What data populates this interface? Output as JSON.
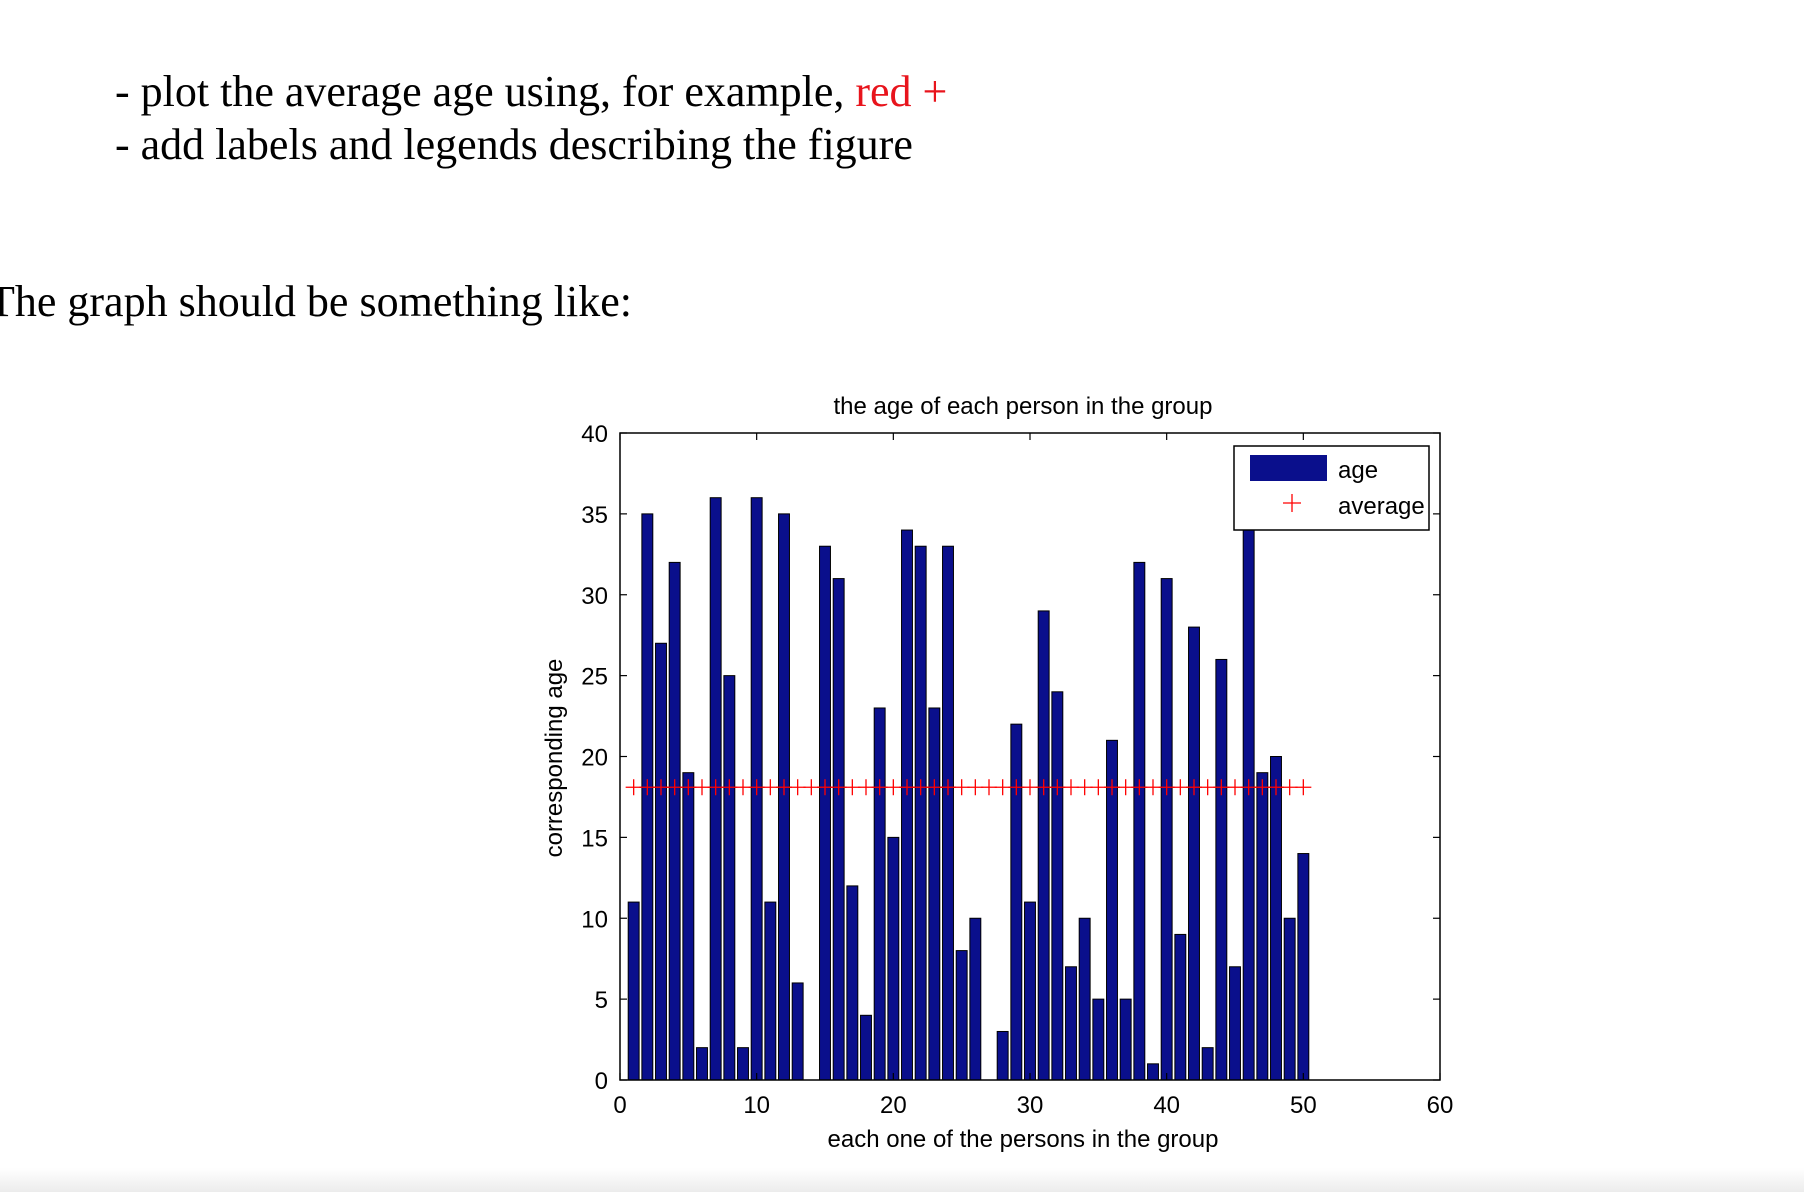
{
  "document": {
    "bullets": [
      {
        "prefix": "- plot the average age using, for example, ",
        "highlight": "red +"
      },
      {
        "prefix": "- add labels and legends describing the figure",
        "highlight": ""
      }
    ],
    "intro": "The graph should be something like:"
  },
  "colors": {
    "bar": "#0a0f8c",
    "average": "#ff0000",
    "highlight_text": "#e8141c"
  },
  "chart_data": {
    "type": "bar",
    "title": "the age of each person in the group",
    "xlabel": "each one of the persons in the group",
    "ylabel": "corresponding age",
    "xlim": [
      0,
      60
    ],
    "ylim": [
      0,
      40
    ],
    "xticks": [
      0,
      10,
      20,
      30,
      40,
      50,
      60
    ],
    "yticks": [
      0,
      5,
      10,
      15,
      20,
      25,
      30,
      35,
      40
    ],
    "grid": false,
    "legend_position": "top-right",
    "series": [
      {
        "name": "age",
        "type": "bar",
        "x": [
          1,
          2,
          3,
          4,
          5,
          6,
          7,
          8,
          9,
          10,
          11,
          12,
          13,
          14,
          15,
          16,
          17,
          18,
          19,
          20,
          21,
          22,
          23,
          24,
          25,
          26,
          27,
          28,
          29,
          30,
          31,
          32,
          33,
          34,
          35,
          36,
          37,
          38,
          39,
          40,
          41,
          42,
          43,
          44,
          45,
          46,
          47,
          48,
          49,
          50
        ],
        "values": [
          11,
          35,
          27,
          32,
          19,
          2,
          36,
          25,
          2,
          36,
          11,
          35,
          6,
          0,
          33,
          31,
          12,
          4,
          23,
          15,
          34,
          33,
          23,
          33,
          8,
          10,
          0,
          3,
          22,
          11,
          29,
          24,
          7,
          10,
          5,
          21,
          5,
          32,
          1,
          31,
          9,
          28,
          2,
          26,
          7,
          38,
          19,
          20,
          10,
          14
        ]
      },
      {
        "name": "average",
        "type": "marker",
        "marker": "+",
        "x": [
          1,
          2,
          3,
          4,
          5,
          6,
          7,
          8,
          9,
          10,
          11,
          12,
          13,
          14,
          15,
          16,
          17,
          18,
          19,
          20,
          21,
          22,
          23,
          24,
          25,
          26,
          27,
          28,
          29,
          30,
          31,
          32,
          33,
          34,
          35,
          36,
          37,
          38,
          39,
          40,
          41,
          42,
          43,
          44,
          45,
          46,
          47,
          48,
          49,
          50
        ],
        "value": 18.1
      }
    ]
  }
}
